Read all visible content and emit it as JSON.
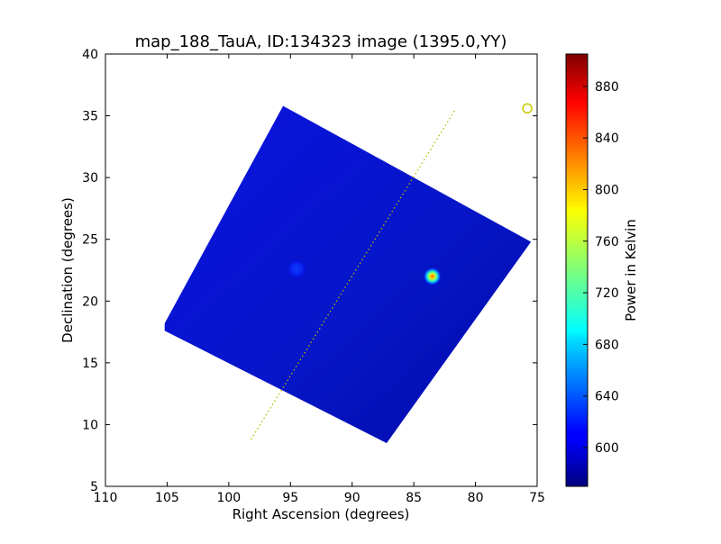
{
  "chart_data": {
    "type": "heatmap",
    "title": "map_188_TauA, ID:134323 image (1395.0,YY)",
    "xlabel": "Right Ascension (degrees)",
    "ylabel": "Declination (degrees)",
    "xlim": [
      110,
      75
    ],
    "ylim": [
      5,
      40
    ],
    "x_ticks": [
      "110",
      "105",
      "100",
      "95",
      "90",
      "85",
      "80",
      "75"
    ],
    "y_ticks": [
      "5",
      "10",
      "15",
      "20",
      "25",
      "30",
      "35",
      "40"
    ],
    "colorbar": {
      "label": "Power in Kelvin",
      "range": [
        570,
        905
      ],
      "ticks": [
        "600",
        "640",
        "680",
        "720",
        "760",
        "800",
        "840",
        "880"
      ],
      "colormap": "jet"
    },
    "map_region_corners": [
      [
        95.6,
        35.8
      ],
      [
        75.5,
        24.8
      ],
      [
        87.2,
        8.5
      ],
      [
        105.2,
        17.6
      ],
      [
        105.2,
        18.2
      ]
    ],
    "background_level": 595,
    "sources": [
      {
        "ra": 83.5,
        "dec": 22.0,
        "peak": 890
      },
      {
        "ra": 94.5,
        "dec": 22.6,
        "peak": 625
      }
    ],
    "overlay_line": {
      "start": [
        98.2,
        8.8
      ],
      "end": [
        81.7,
        35.4
      ],
      "color": "#b5b800",
      "style": "dotted"
    },
    "marker": {
      "ra": 75.8,
      "dec": 35.6,
      "shape": "circle",
      "color": "#c8c800"
    }
  }
}
